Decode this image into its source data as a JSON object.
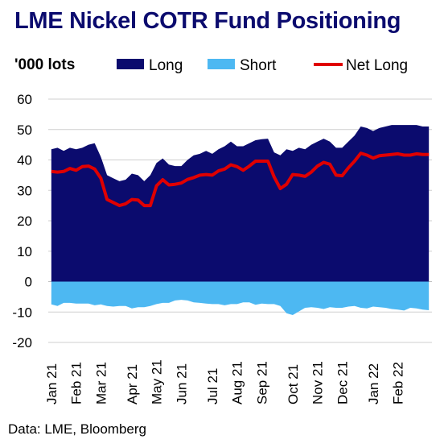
{
  "title": "LME Nickel COTR Fund Positioning",
  "source": "Data: LME, Bloomberg",
  "chart_data": {
    "type": "area",
    "title": "LME Nickel COTR Fund Positioning",
    "ylabel": "'000 lots",
    "ylim": [
      -20,
      60
    ],
    "yticks": [
      -20,
      -10,
      0,
      10,
      20,
      30,
      40,
      50,
      60
    ],
    "grid": true,
    "legend_position": "top",
    "x_tick_labels": [
      "Jan 21",
      "Feb 21",
      "Mar 21",
      "Apr 21",
      "May 21",
      "Jun 21",
      "Jul 21",
      "Aug 21",
      "Sep 21",
      "Oct 21",
      "Nov 21",
      "Dec 21",
      "Jan 22",
      "Feb 22"
    ],
    "x_tick_week_index": [
      0,
      4,
      8,
      13,
      17,
      21,
      26,
      30,
      34,
      39,
      43,
      47,
      52,
      56
    ],
    "x": [
      "2021-01-05",
      "2021-01-12",
      "2021-01-19",
      "2021-01-26",
      "2021-02-02",
      "2021-02-09",
      "2021-02-16",
      "2021-02-23",
      "2021-03-02",
      "2021-03-09",
      "2021-03-16",
      "2021-03-23",
      "2021-03-30",
      "2021-04-06",
      "2021-04-13",
      "2021-04-20",
      "2021-04-27",
      "2021-05-04",
      "2021-05-11",
      "2021-05-18",
      "2021-05-25",
      "2021-06-01",
      "2021-06-08",
      "2021-06-15",
      "2021-06-22",
      "2021-06-29",
      "2021-07-06",
      "2021-07-13",
      "2021-07-20",
      "2021-07-27",
      "2021-08-03",
      "2021-08-10",
      "2021-08-17",
      "2021-08-24",
      "2021-08-31",
      "2021-09-07",
      "2021-09-14",
      "2021-09-21",
      "2021-09-28",
      "2021-10-05",
      "2021-10-12",
      "2021-10-19",
      "2021-10-26",
      "2021-11-02",
      "2021-11-09",
      "2021-11-16",
      "2021-11-23",
      "2021-11-30",
      "2021-12-07",
      "2021-12-14",
      "2021-12-21",
      "2021-12-28",
      "2022-01-04",
      "2022-01-11",
      "2022-01-18",
      "2022-01-25",
      "2022-02-01",
      "2022-02-08",
      "2022-02-15",
      "2022-02-22",
      "2022-03-01",
      "2022-03-08"
    ],
    "series": [
      {
        "name": "Long",
        "style": "area",
        "color": "#0b0b6e",
        "values": [
          43.5,
          44,
          43,
          44,
          43.5,
          44,
          45,
          45.5,
          41,
          35,
          34,
          33,
          33.5,
          35.5,
          35,
          33,
          35,
          39,
          40.5,
          38.5,
          38,
          38,
          40,
          41.5,
          42,
          43,
          42,
          43.5,
          44.5,
          46,
          44.5,
          44.5,
          45.5,
          46.5,
          46.8,
          47,
          42.5,
          41.5,
          43.5,
          43,
          44,
          43.5,
          45,
          46,
          47,
          46,
          44,
          44,
          46,
          48,
          51,
          50.5,
          49.5,
          50.5,
          51,
          51.5,
          51.5,
          51.5,
          51.5,
          51.5,
          51,
          51
        ]
      },
      {
        "name": "Short",
        "style": "area",
        "color": "#4db8f2",
        "values": [
          -7.5,
          -8,
          -7,
          -7,
          -7.2,
          -7.2,
          -7.2,
          -7.8,
          -7.5,
          -8,
          -8.2,
          -8,
          -8,
          -8.8,
          -8.4,
          -8.4,
          -8,
          -7.4,
          -7,
          -7,
          -6.2,
          -6,
          -6.2,
          -6.8,
          -7,
          -7.2,
          -7.4,
          -7.4,
          -7.8,
          -7.4,
          -7.4,
          -6.8,
          -6.8,
          -7.6,
          -7.2,
          -7.4,
          -7.4,
          -8,
          -10.4,
          -11,
          -9.8,
          -8.6,
          -8.4,
          -8.6,
          -9,
          -8.4,
          -8.6,
          -8.6,
          -8.2,
          -8,
          -8.6,
          -8.8,
          -8.2,
          -8.4,
          -8.6,
          -9,
          -9.2,
          -9.5,
          -8.6,
          -8.8,
          -9.2,
          -9.4
        ]
      },
      {
        "name": "Net Long",
        "style": "line",
        "color": "#e00000",
        "values": [
          36.2,
          36,
          36.2,
          37.2,
          36.6,
          37.8,
          38,
          37,
          34,
          27,
          26,
          25,
          25.6,
          27,
          26.8,
          25,
          25,
          31.5,
          33.5,
          31.8,
          32,
          32.4,
          33.6,
          34.2,
          35,
          35.2,
          35,
          36.4,
          37,
          38.4,
          37.8,
          36.6,
          38,
          39.6,
          39.6,
          39.6,
          34.4,
          30.6,
          32,
          35.2,
          35,
          34.6,
          36,
          38,
          39.2,
          38.6,
          35,
          34.8,
          37.4,
          39.6,
          42.2,
          41.6,
          40.6,
          41.4,
          41.6,
          41.8,
          42,
          41.6,
          41.6,
          42,
          41.8,
          41.8
        ]
      }
    ]
  }
}
